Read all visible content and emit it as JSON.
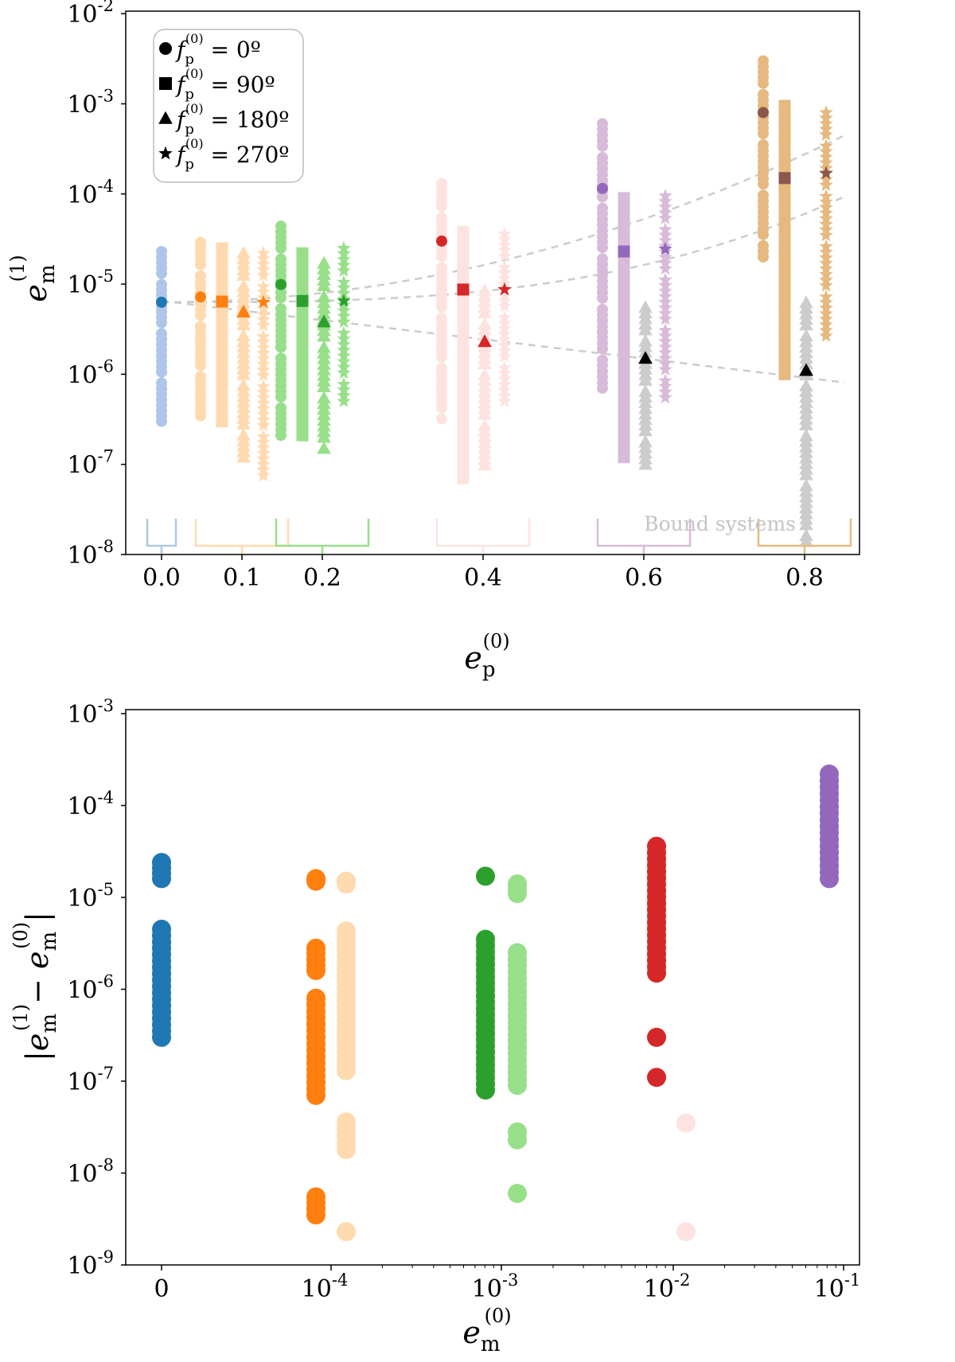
{
  "chart_data": [
    {
      "type": "scatter",
      "panel": "top",
      "xlabel": "e_p^(0)",
      "ylabel": "e_m^(1)",
      "yscale": "log",
      "ylim": [
        1e-08,
        0.01
      ],
      "xticks": [
        {
          "value": 0.0,
          "label": "0.0"
        },
        {
          "value": 0.1,
          "label": "0.1"
        },
        {
          "value": 0.2,
          "label": "0.2"
        },
        {
          "value": 0.4,
          "label": "0.4"
        },
        {
          "value": 0.6,
          "label": "0.6"
        },
        {
          "value": 0.8,
          "label": "0.8"
        }
      ],
      "yticks": [
        {
          "exp": "-2"
        },
        {
          "exp": "-3"
        },
        {
          "exp": "-4"
        },
        {
          "exp": "-5"
        },
        {
          "exp": "-6"
        },
        {
          "exp": "-7"
        },
        {
          "exp": "-8"
        }
      ],
      "legend": {
        "position": "top-left",
        "entries": [
          {
            "marker": "circle",
            "deg": "0º"
          },
          {
            "marker": "square",
            "deg": "90º"
          },
          {
            "marker": "triangle",
            "deg": "180º"
          },
          {
            "marker": "star",
            "deg": "270º"
          }
        ]
      },
      "annotation": "Bound systems",
      "groups": [
        {
          "ep": 0.0,
          "color": "#aec7e8",
          "markers": {
            "circle": {
              "spread": [
                3e-07,
                2.3e-05
              ],
              "highlight": 6.3e-06,
              "hcolor": "#1f77b4"
            }
          }
        },
        {
          "ep": 0.1,
          "color": "#ffdab0",
          "markers": {
            "circle": {
              "spread": [
                3e-07,
                2.9e-05
              ],
              "highlight": 7.2e-06,
              "hcolor": "#ff7f0e"
            },
            "square": {
              "spread": [
                3e-07,
                2.5e-05
              ],
              "highlight": 6.4e-06,
              "hcolor": "#ff7f0e"
            },
            "triangle": {
              "spread": [
                1.2e-07,
                2.2e-05
              ],
              "highlight": 4.9e-06,
              "hcolor": "#ff7f0e"
            },
            "star": {
              "spread": [
                7.5e-08,
                2.2e-05
              ],
              "highlight": 6.3e-06,
              "hcolor": "#ff7f0e"
            }
          }
        },
        {
          "ep": 0.2,
          "color": "#98df8a",
          "markers": {
            "circle": {
              "spread": [
                2.1e-07,
                4.4e-05
              ],
              "highlight": 9.9e-06,
              "hcolor": "#2ca02c"
            },
            "square": {
              "spread": [
                2.1e-07,
                2.2e-05
              ],
              "highlight": 6.5e-06,
              "hcolor": "#2ca02c"
            },
            "triangle": {
              "spread": [
                1.5e-07,
                1.7e-05
              ],
              "highlight": 3.8e-06,
              "hcolor": "#2ca02c"
            },
            "star": {
              "spread": [
                5e-07,
                2.5e-05
              ],
              "highlight": 6.5e-06,
              "hcolor": "#2ca02c"
            }
          }
        },
        {
          "ep": 0.4,
          "color": "#fde3e0",
          "markers": {
            "circle": {
              "spread": [
                3.2e-07,
                0.00013
              ],
              "highlight": 3e-05,
              "hcolor": "#d62728"
            },
            "square": {
              "spread": [
                7e-08,
                3.8e-05
              ],
              "highlight": 8.7e-06,
              "hcolor": "#d62728"
            },
            "triangle": {
              "spread": [
                8.5e-08,
                8.5e-06
              ],
              "highlight": 2.3e-06,
              "hcolor": "#d62728"
            },
            "star": {
              "spread": [
                5e-07,
                3.6e-05
              ],
              "highlight": 8.7e-06,
              "hcolor": "#d62728"
            }
          }
        },
        {
          "ep": 0.6,
          "color": "#d8bbd8",
          "markers": {
            "circle": {
              "spread": [
                7e-07,
                0.0006
              ],
              "highlight": 0.000115,
              "hcolor": "#9467bd"
            },
            "square": {
              "spread": [
                1.2e-07,
                9e-05
              ],
              "highlight": 2.3e-05,
              "hcolor": "#9467bd"
            },
            "triangle": {
              "spread": [
                1e-07,
                5.5e-06
              ],
              "highlight": 1.5e-06,
              "hcolor": "#000000",
              "bcolor": "#cccccc"
            },
            "star": {
              "spread": [
                5.5e-07,
                9.5e-05
              ],
              "highlight": 2.45e-05,
              "hcolor": "#9467bd"
            }
          }
        },
        {
          "ep": 0.8,
          "color": "#e5b97f",
          "markers": {
            "circle": {
              "spread": [
                2e-05,
                0.003
              ],
              "highlight": 0.0008,
              "hcolor": "#8c564b"
            },
            "square": {
              "spread": [
                1e-06,
                0.00095
              ],
              "highlight": 0.00015,
              "hcolor": "#8c564b"
            },
            "triangle": {
              "spread": [
                1.4e-08,
                6.2e-06
              ],
              "highlight": 1.1e-06,
              "hcolor": "#000000",
              "bcolor": "#cccccc"
            },
            "star": {
              "spread": [
                2.3e-06,
                0.0008
              ],
              "highlight": 0.00017,
              "hcolor": "#8c564b"
            }
          }
        }
      ]
    },
    {
      "type": "scatter",
      "panel": "bottom",
      "xlabel": "e_m^(0)",
      "ylabel": "|e_m^(1) − e_m^(0)|",
      "yscale": "log",
      "ylim": [
        1e-09,
        0.001
      ],
      "xticks": [
        {
          "label": "0",
          "exp": ""
        },
        {
          "label": "10",
          "exp": "-4"
        },
        {
          "label": "10",
          "exp": "-3"
        },
        {
          "label": "10",
          "exp": "-2"
        },
        {
          "label": "10",
          "exp": "-1"
        }
      ],
      "yticks": [
        {
          "exp": "-3"
        },
        {
          "exp": "-4"
        },
        {
          "exp": "-5"
        },
        {
          "exp": "-6"
        },
        {
          "exp": "-7"
        },
        {
          "exp": "-8"
        },
        {
          "exp": "-9"
        }
      ],
      "columns": [
        {
          "em": "0",
          "color": "#1f77b4",
          "segments": [
            [
              3e-07,
              4.5e-06
            ],
            [
              1.6e-05,
              2.4e-05
            ]
          ]
        },
        {
          "em": "1e-4",
          "color": "#ff7f0e",
          "segments": [
            [
              7e-08,
              8e-07
            ],
            [
              1.6e-06,
              2.8e-06
            ],
            [
              1.5e-05,
              1.6e-05
            ],
            [
              3.5e-09,
              5.5e-09
            ]
          ]
        },
        {
          "em": "1e-4 (light)",
          "color": "#ffdab0",
          "segments": [
            [
              1.3e-07,
              4.3e-06
            ],
            [
              1.8e-08,
              3.6e-08
            ],
            [
              1.4e-05,
              1.5e-05
            ],
            [
              2.3e-09,
              2.3e-09
            ]
          ]
        },
        {
          "em": "1e-3",
          "color": "#2ca02c",
          "segments": [
            [
              8e-08,
              3.5e-06
            ],
            [
              1.7e-05,
              1.7e-05
            ]
          ]
        },
        {
          "em": "1e-3 (light)",
          "color": "#98df8a",
          "segments": [
            [
              9e-08,
              2.5e-06
            ],
            [
              2.3e-08,
              2.8e-08
            ],
            [
              1.1e-05,
              1.4e-05
            ],
            [
              6e-09,
              6e-09
            ]
          ]
        },
        {
          "em": "1e-2",
          "color": "#d62728",
          "segments": [
            [
              1.5e-06,
              3.6e-05
            ],
            [
              3e-07,
              3e-07
            ],
            [
              1.1e-07,
              1.1e-07
            ]
          ]
        },
        {
          "em": "1e-2 (light)",
          "color": "#fde3e0",
          "segments": [
            [
              3.5e-08,
              3.5e-08
            ],
            [
              2.3e-09,
              2.3e-09
            ]
          ]
        },
        {
          "em": "1e-1",
          "color": "#9467bd",
          "segments": [
            [
              1.6e-05,
              0.00022
            ]
          ]
        }
      ]
    }
  ]
}
